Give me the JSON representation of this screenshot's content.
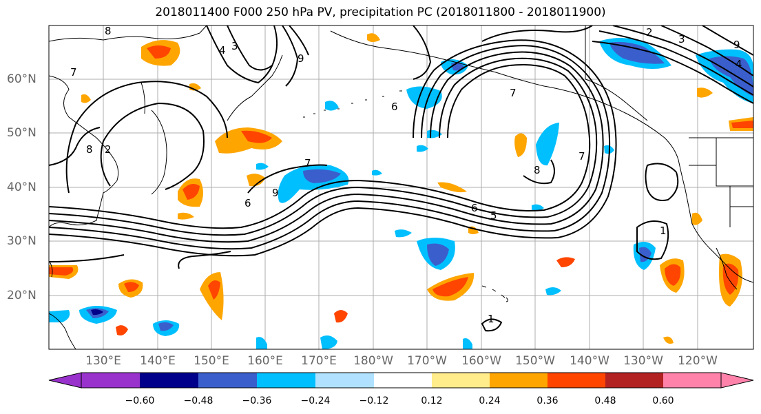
{
  "title": "2018011400 F000 250 hPa PV, precipitation PC (2018011800 - 2018011900)",
  "lat_labels": [
    "60°N",
    "50°N",
    "40°N",
    "30°N",
    "20°N"
  ],
  "lon_labels": [
    "130°E",
    "140°E",
    "150°E",
    "160°E",
    "170°E",
    "180°W",
    "170°W",
    "160°W",
    "150°W",
    "140°W",
    "130°W",
    "120°W"
  ],
  "contour_labels": [
    "8",
    "4",
    "3",
    "7",
    "9",
    "8",
    "2",
    "6",
    "6",
    "7",
    "9",
    "8",
    "7",
    "6",
    "5",
    "1",
    "1",
    "7",
    "2",
    "3",
    "4",
    "9"
  ],
  "colorbar": {
    "tick_labels": [
      "−0.60",
      "−0.48",
      "−0.36",
      "−0.24",
      "−0.12",
      "0.12",
      "0.24",
      "0.36",
      "0.48",
      "0.60"
    ],
    "colors": [
      "#9932cc",
      "#00008b",
      "#3a5fcd",
      "#00bfff",
      "#b0e2ff",
      "#ffffff",
      "#ffec8b",
      "#ffa500",
      "#ff4500",
      "#b22222",
      "#ff82ab"
    ]
  },
  "colors": {
    "text": "#000000",
    "axis_text": "#666666",
    "grid": "#999999",
    "contour": "#000000"
  }
}
